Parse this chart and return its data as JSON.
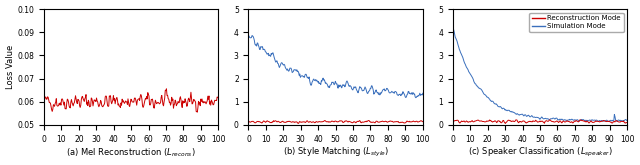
{
  "fig_width": 6.4,
  "fig_height": 1.65,
  "dpi": 100,
  "subplot_titles": [
    "(a) Mel Reconstruction ($L_{recons}$)",
    "(b) Style Matching ($L_{style}$)",
    "(c) Speaker Classification ($L_{speaker}$)"
  ],
  "ylabel": "Loss Value",
  "red_color": "#cc0000",
  "blue_color": "#3a6fbc",
  "legend_labels": [
    "Reconstruction Mode",
    "Simulation Mode"
  ],
  "panel_a": {
    "ylim": [
      0.05,
      0.1
    ],
    "yticks": [
      0.05,
      0.06,
      0.07,
      0.08,
      0.09,
      0.1
    ],
    "xlim": [
      0,
      100
    ],
    "xticks": [
      0,
      10,
      20,
      30,
      40,
      50,
      60,
      70,
      80,
      90,
      100
    ],
    "n_points": 300,
    "red_base": 0.06,
    "red_noise": 0.003
  },
  "panel_b": {
    "ylim": [
      0,
      5
    ],
    "yticks": [
      0,
      1,
      2,
      3,
      4,
      5
    ],
    "xlim": [
      0,
      100
    ],
    "xticks": [
      0,
      10,
      20,
      30,
      40,
      50,
      60,
      70,
      80,
      90,
      100
    ],
    "n_points": 300,
    "blue_start": 3.9,
    "blue_settle": 1.25,
    "blue_noise": 0.18,
    "blue_decay_k": 0.35,
    "red_base": 0.13,
    "red_noise": 0.04
  },
  "panel_c": {
    "ylim": [
      0,
      5
    ],
    "yticks": [
      0,
      1,
      2,
      3,
      4,
      5
    ],
    "xlim": [
      0,
      100
    ],
    "xticks": [
      0,
      10,
      20,
      30,
      40,
      50,
      60,
      70,
      80,
      90,
      100
    ],
    "n_points": 300,
    "blue_start": 4.2,
    "blue_floor": 0.18,
    "blue_decay_k": 0.7,
    "blue_noise": 0.04,
    "red_base": 0.14,
    "red_noise": 0.05,
    "spike_x": 93,
    "spike_val": 0.45
  }
}
